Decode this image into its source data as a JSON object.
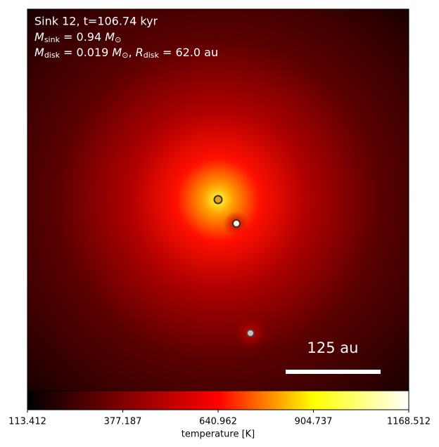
{
  "chart_data": {
    "type": "image",
    "annotation": {
      "line1": "Sink 12, t=106.74 kyr",
      "line2": [
        "M",
        "sink",
        " = 0.94 ",
        "M",
        "⊙"
      ],
      "line3": [
        "M",
        "disk",
        " = 0.019 ",
        "M",
        "⊙",
        ", ",
        "R",
        "disk",
        " = 62.0 au"
      ]
    },
    "scale_bar_label": "125 au",
    "colorbar": {
      "label": "temperature [K]",
      "lim": [
        113.412,
        1168.512
      ],
      "ticks": [
        113.412,
        377.187,
        640.962,
        904.737,
        1168.512
      ],
      "colormap": [
        "#000000",
        "#800000",
        "#ff0000",
        "#ffff00",
        "#ffffff"
      ]
    }
  }
}
